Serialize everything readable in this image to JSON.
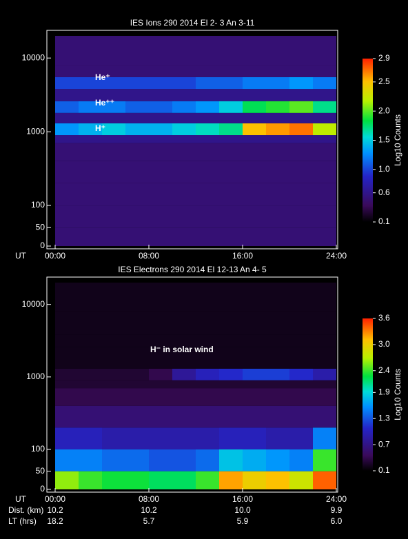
{
  "chart_data": [
    {
      "type": "heatmap",
      "title": "IES Ions 290 2014 El  2- 3 An 3-11",
      "xlabel": "UT",
      "xlim": [
        0,
        24
      ],
      "xticks": [
        {
          "value": 0,
          "label": "00:00"
        },
        {
          "value": 8,
          "label": "08:00"
        },
        {
          "value": 16,
          "label": "16:00"
        },
        {
          "value": 24,
          "label": "24:00"
        }
      ],
      "ylim": [
        0,
        20000
      ],
      "yticks": [
        0,
        50,
        100,
        1000,
        10000
      ],
      "yscale": "log",
      "x": [
        0,
        2,
        4,
        6,
        8,
        10,
        12,
        14,
        16,
        18,
        20,
        22,
        24
      ],
      "y": [
        0,
        50,
        100,
        200,
        400,
        700,
        900,
        1300,
        1800,
        2600,
        3800,
        5500,
        8000,
        20000
      ],
      "z": [
        [
          0.5,
          0.5,
          0.5,
          0.5,
          0.5,
          0.5,
          0.5,
          0.5,
          0.5,
          0.5,
          0.5,
          0.5
        ],
        [
          0.5,
          0.5,
          0.5,
          0.5,
          0.5,
          0.5,
          0.5,
          0.5,
          0.5,
          0.5,
          0.5,
          0.5
        ],
        [
          0.5,
          0.5,
          0.5,
          0.5,
          0.5,
          0.5,
          0.5,
          0.5,
          0.5,
          0.5,
          0.5,
          0.5
        ],
        [
          0.5,
          0.5,
          0.5,
          0.5,
          0.5,
          0.5,
          0.5,
          0.5,
          0.5,
          0.5,
          0.5,
          0.5
        ],
        [
          0.5,
          0.5,
          0.5,
          0.5,
          0.5,
          0.5,
          0.5,
          0.5,
          0.5,
          0.5,
          0.5,
          0.5
        ],
        [
          0.6,
          0.6,
          0.6,
          0.6,
          0.6,
          0.6,
          0.6,
          0.6,
          0.6,
          0.6,
          0.6,
          0.6
        ],
        [
          1.3,
          1.4,
          1.5,
          1.4,
          1.4,
          1.5,
          1.6,
          1.7,
          2.5,
          2.6,
          2.7,
          2.2
        ],
        [
          0.6,
          0.6,
          0.6,
          0.6,
          0.6,
          0.6,
          0.6,
          0.6,
          0.6,
          0.6,
          0.6,
          0.6
        ],
        [
          1.1,
          1.2,
          1.2,
          1.1,
          1.1,
          1.2,
          1.3,
          1.5,
          1.8,
          1.9,
          2.0,
          1.7
        ],
        [
          0.6,
          0.6,
          0.6,
          0.6,
          0.6,
          0.6,
          0.6,
          0.6,
          0.6,
          0.6,
          0.6,
          0.6
        ],
        [
          1.0,
          1.0,
          1.0,
          1.0,
          1.0,
          1.0,
          1.1,
          1.1,
          1.2,
          1.2,
          1.3,
          1.2
        ],
        [
          0.5,
          0.5,
          0.5,
          0.5,
          0.5,
          0.5,
          0.5,
          0.5,
          0.5,
          0.5,
          0.5,
          0.5
        ],
        [
          0.5,
          0.5,
          0.5,
          0.5,
          0.5,
          0.5,
          0.5,
          0.5,
          0.5,
          0.5,
          0.5,
          0.5
        ]
      ],
      "zlim": [
        0.1,
        2.9
      ],
      "zticks": [
        0.1,
        0.6,
        {
          "value": 1,
          "label": "1.0"
        },
        1.5,
        {
          "value": 2,
          "label": "2.0"
        },
        2.5,
        2.9
      ],
      "colorbar_label": "Log10 Counts",
      "annotations": [
        "He⁺",
        "He⁺⁺",
        "H⁺"
      ]
    },
    {
      "type": "heatmap",
      "title": "IES Electrons 290 2014 El 12-13 An 4- 5",
      "xlabel": "UT",
      "xlim": [
        0,
        24
      ],
      "xticks": [
        {
          "value": 0,
          "label": "00:00"
        },
        {
          "value": 8,
          "label": "08:00"
        },
        {
          "value": 16,
          "label": "16:00"
        },
        {
          "value": 24,
          "label": "24:00"
        }
      ],
      "ylim": [
        0,
        20000
      ],
      "yticks": [
        0,
        50,
        100,
        1000,
        10000
      ],
      "yscale": "log",
      "x": [
        0,
        2,
        4,
        6,
        8,
        10,
        12,
        14,
        16,
        18,
        20,
        22,
        24
      ],
      "y": [
        0,
        50,
        100,
        200,
        400,
        700,
        900,
        1300,
        1800,
        2600,
        3800,
        5500,
        8000,
        20000
      ],
      "z": [
        [
          2.6,
          2.4,
          2.3,
          2.3,
          2.2,
          2.2,
          2.4,
          3.2,
          3.0,
          3.1,
          2.8,
          3.4
        ],
        [
          1.5,
          1.5,
          1.4,
          1.4,
          1.3,
          1.3,
          1.4,
          1.8,
          1.7,
          1.6,
          1.5,
          2.4
        ],
        [
          1.0,
          1.0,
          0.9,
          0.9,
          0.9,
          0.9,
          0.9,
          1.0,
          1.0,
          0.9,
          0.9,
          1.5
        ],
        [
          0.6,
          0.6,
          0.6,
          0.6,
          0.6,
          0.6,
          0.6,
          0.6,
          0.6,
          0.6,
          0.6,
          0.6
        ],
        [
          0.4,
          0.4,
          0.4,
          0.4,
          0.4,
          0.4,
          0.4,
          0.4,
          0.4,
          0.4,
          0.4,
          0.4
        ],
        [
          0.3,
          0.3,
          0.3,
          0.3,
          0.3,
          0.3,
          0.3,
          0.3,
          0.3,
          0.3,
          0.3,
          0.3
        ],
        [
          0.3,
          0.3,
          0.3,
          0.3,
          0.4,
          0.8,
          1.0,
          1.1,
          1.2,
          1.2,
          1.1,
          0.9
        ],
        [
          0.2,
          0.2,
          0.2,
          0.2,
          0.2,
          0.2,
          0.2,
          0.2,
          0.2,
          0.2,
          0.2,
          0.2
        ],
        [
          0.2,
          0.2,
          0.2,
          0.2,
          0.2,
          0.2,
          0.2,
          0.2,
          0.2,
          0.2,
          0.2,
          0.2
        ],
        [
          0.2,
          0.2,
          0.2,
          0.2,
          0.2,
          0.2,
          0.2,
          0.2,
          0.2,
          0.2,
          0.2,
          0.2
        ],
        [
          0.2,
          0.2,
          0.2,
          0.2,
          0.2,
          0.2,
          0.2,
          0.2,
          0.2,
          0.2,
          0.2,
          0.2
        ],
        [
          0.2,
          0.2,
          0.2,
          0.2,
          0.2,
          0.2,
          0.2,
          0.2,
          0.2,
          0.2,
          0.2,
          0.2
        ],
        [
          0.2,
          0.2,
          0.2,
          0.2,
          0.2,
          0.2,
          0.2,
          0.2,
          0.2,
          0.2,
          0.2,
          0.2
        ]
      ],
      "zlim": [
        0.1,
        3.6
      ],
      "zticks": [
        0.1,
        0.7,
        1.3,
        1.9,
        2.4,
        {
          "value": 3,
          "label": "3.0"
        },
        3.6
      ],
      "colorbar_label": "Log10 Counts",
      "annotations": [
        "H⁻ in solar wind"
      ],
      "rows": [
        {
          "label": "Dist. (km)",
          "values": [
            "10.2",
            "10.2",
            "10.0",
            "9.9"
          ]
        },
        {
          "label": "LT (hrs)",
          "values": [
            "18.2",
            "5.7",
            "5.9",
            "6.0"
          ]
        }
      ]
    }
  ]
}
